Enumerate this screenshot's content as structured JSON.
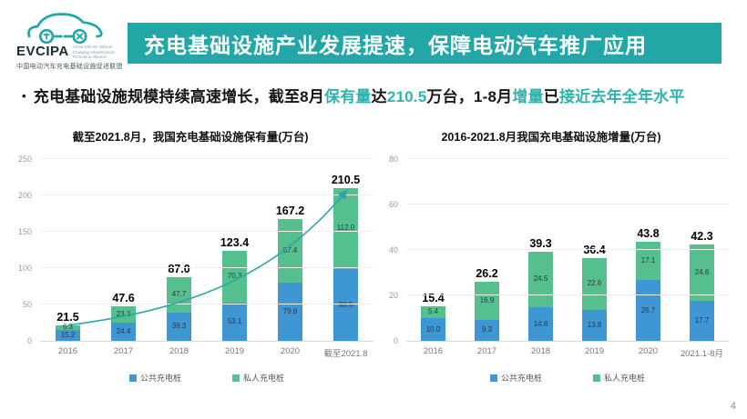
{
  "logo": {
    "brand": "EVCIPA",
    "subtext_en": "China Electric Vehicle Charging Infrastructure Promotion Alliance",
    "subtext_cn": "中国电动汽车充电基础设施促进联盟"
  },
  "header": {
    "title": "充电基础设施产业发展提速，保障电动汽车推广应用"
  },
  "subtitle": {
    "bullet": "•",
    "segments": [
      {
        "text": "充电基础设施规模持续高速增长，截至8月",
        "teal": false
      },
      {
        "text": "保有量",
        "teal": true
      },
      {
        "text": "达",
        "teal": false
      },
      {
        "text": "210.5",
        "teal": true
      },
      {
        "text": "万台，1-8月",
        "teal": false
      },
      {
        "text": "增量",
        "teal": true
      },
      {
        "text": "已",
        "teal": false
      },
      {
        "text": "接近去年全年水平",
        "teal": true
      }
    ]
  },
  "colors": {
    "banner_teal": "#23A6A6",
    "text_teal": "#2FB3AE",
    "public_blue": "#3E96D2",
    "private_green": "#55BF8E",
    "trend_teal": "#2AA7A7"
  },
  "chart_data": [
    {
      "type": "bar",
      "stacked": true,
      "title": "截至2021.8月，我国充电基础设施保有量(万台)",
      "categories": [
        "2016",
        "2017",
        "2018",
        "2019",
        "2020",
        "截至2021.8"
      ],
      "series": [
        {
          "name": "公共充电桩",
          "color": "#3E96D2",
          "values": [
            15.2,
            24.4,
            39.3,
            53.1,
            79.8,
            98.5
          ]
        },
        {
          "name": "私人充电桩",
          "color": "#55BF8E",
          "values": [
            6.3,
            23.2,
            47.7,
            70.3,
            87.4,
            112.0
          ]
        }
      ],
      "totals": [
        21.5,
        47.6,
        87.0,
        123.4,
        167.2,
        210.5
      ],
      "ylim": [
        0,
        250
      ],
      "yticks": [
        0,
        50,
        100,
        150,
        200,
        250
      ],
      "grid": true,
      "trendline": true,
      "legend_position": "bottom"
    },
    {
      "type": "bar",
      "stacked": true,
      "title": "2016-2021.8月我国充电基础设施增量(万台)",
      "categories": [
        "2016",
        "2017",
        "2018",
        "2019",
        "2020",
        "2021.1-8月"
      ],
      "series": [
        {
          "name": "公共充电桩",
          "color": "#3E96D2",
          "values": [
            10.0,
            9.3,
            14.8,
            13.8,
            26.7,
            17.7
          ]
        },
        {
          "name": "私人充电桩",
          "color": "#55BF8E",
          "values": [
            5.4,
            16.9,
            24.5,
            22.6,
            17.1,
            24.6
          ]
        }
      ],
      "totals": [
        15.4,
        26.2,
        39.3,
        36.4,
        43.8,
        42.3
      ],
      "ylim": [
        0,
        80
      ],
      "yticks": [
        0,
        20,
        40,
        60,
        80
      ],
      "grid": true,
      "trendline": false,
      "legend_position": "bottom"
    }
  ],
  "footer": {
    "page_number": "4"
  }
}
